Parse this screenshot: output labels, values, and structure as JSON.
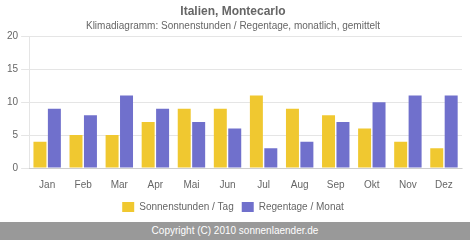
{
  "chart_data": {
    "type": "bar",
    "title": "Italien, Montecarlo",
    "subtitle": "Klimadiagramm: Sonnenstunden / Regentage, monatlich, gemittelt",
    "categories": [
      "Jan",
      "Feb",
      "Mar",
      "Apr",
      "Mai",
      "Jun",
      "Jul",
      "Aug",
      "Sep",
      "Okt",
      "Nov",
      "Dez"
    ],
    "series": [
      {
        "name": "Sonnenstunden / Tag",
        "color": "#f0c830",
        "values": [
          4,
          5,
          5,
          7,
          9,
          9,
          11,
          9,
          8,
          6,
          4,
          3
        ]
      },
      {
        "name": "Regentage / Monat",
        "color": "#7070cc",
        "values": [
          9,
          8,
          11,
          9,
          7,
          6,
          3,
          4,
          7,
          10,
          11,
          11
        ]
      }
    ],
    "ylim": [
      0,
      20
    ],
    "yticks": [
      0,
      5,
      10,
      15,
      20
    ],
    "grid": true,
    "legend": "bottom",
    "annotations": [
      "Copyright (C) 2010 sonnenlaender.de"
    ]
  }
}
